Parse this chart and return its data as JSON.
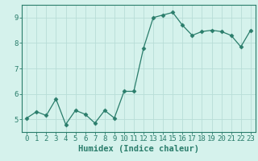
{
  "x": [
    0,
    1,
    2,
    3,
    4,
    5,
    6,
    7,
    8,
    9,
    10,
    11,
    12,
    13,
    14,
    15,
    16,
    17,
    18,
    19,
    20,
    21,
    22,
    23
  ],
  "y": [
    5.05,
    5.3,
    5.15,
    5.8,
    4.8,
    5.35,
    5.2,
    4.85,
    5.35,
    5.05,
    6.1,
    6.1,
    7.8,
    9.0,
    9.1,
    9.2,
    8.7,
    8.3,
    8.45,
    8.5,
    8.45,
    8.3,
    7.85,
    8.5
  ],
  "xlabel": "Humidex (Indice chaleur)",
  "xlim": [
    -0.5,
    23.5
  ],
  "ylim": [
    4.5,
    9.5
  ],
  "yticks": [
    5,
    6,
    7,
    8,
    9
  ],
  "xticks": [
    0,
    1,
    2,
    3,
    4,
    5,
    6,
    7,
    8,
    9,
    10,
    11,
    12,
    13,
    14,
    15,
    16,
    17,
    18,
    19,
    20,
    21,
    22,
    23
  ],
  "line_color": "#2a7d6b",
  "marker": "D",
  "marker_size": 2.5,
  "bg_color": "#d5f2ec",
  "grid_color": "#b8ddd7",
  "axis_color": "#2a7d6b",
  "label_fontsize": 7.5,
  "tick_fontsize": 6.5
}
